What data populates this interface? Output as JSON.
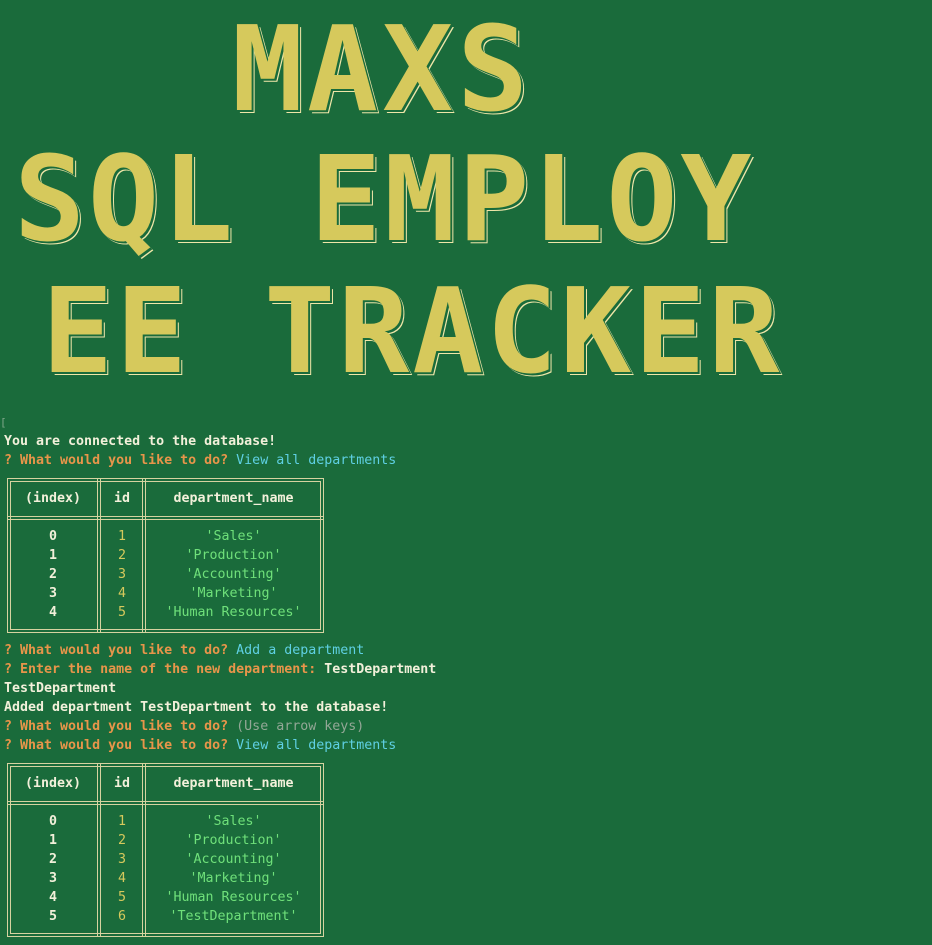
{
  "banner": {
    "line1": "MAXS",
    "line2": "SQL EMPLOY",
    "line3": "EE TRACKER"
  },
  "console": {
    "connected": "You are connected to the database!",
    "prompt_prefix": "? ",
    "question": "What would you like to do?",
    "answer_view_all": "View all departments",
    "answer_add": "Add a department",
    "enter_name_question": "Enter the name of the new department:",
    "entered_value": "TestDepartment",
    "echo_value": "TestDepartment",
    "added_message": "Added department TestDepartment to the database!",
    "hint_arrow_keys": "(Use arrow keys)"
  },
  "table_headers": {
    "index": "(index)",
    "id": "id",
    "name": "department_name"
  },
  "table1": [
    {
      "index": "0",
      "id": "1",
      "name": "'Sales'"
    },
    {
      "index": "1",
      "id": "2",
      "name": "'Production'"
    },
    {
      "index": "2",
      "id": "3",
      "name": "'Accounting'"
    },
    {
      "index": "3",
      "id": "4",
      "name": "'Marketing'"
    },
    {
      "index": "4",
      "id": "5",
      "name": "'Human Resources'"
    }
  ],
  "table2": [
    {
      "index": "0",
      "id": "1",
      "name": "'Sales'"
    },
    {
      "index": "1",
      "id": "2",
      "name": "'Production'"
    },
    {
      "index": "2",
      "id": "3",
      "name": "'Accounting'"
    },
    {
      "index": "3",
      "id": "4",
      "name": "'Marketing'"
    },
    {
      "index": "4",
      "id": "5",
      "name": "'Human Resources'"
    },
    {
      "index": "5",
      "id": "6",
      "name": "'TestDepartment'"
    }
  ],
  "colors": {
    "background": "#1a6b3b",
    "prompt_question": "#e8954a",
    "answer": "#5fd0e3",
    "string_value": "#6fe07a",
    "number_value": "#d6c95c",
    "banner": "#d6c95c"
  }
}
